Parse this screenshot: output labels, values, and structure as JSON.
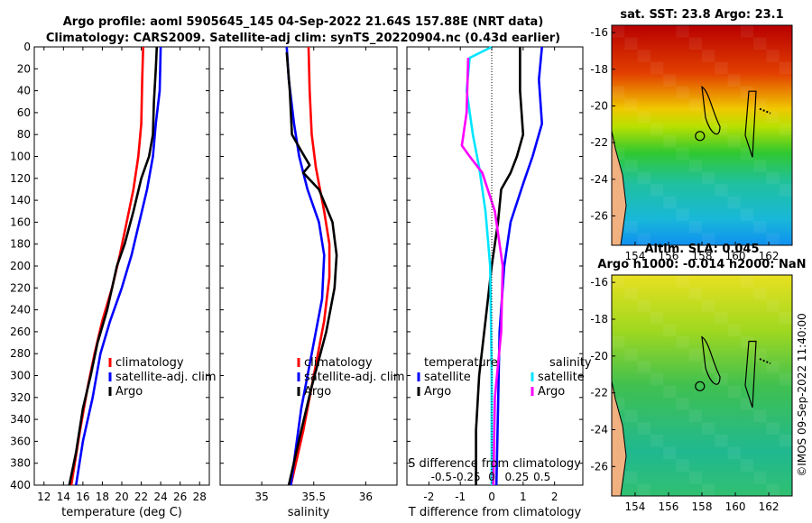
{
  "header": {
    "line1": "Argo profile: aoml 5905645_145 04-Sep-2022 21.64S 157.88E (NRT data)",
    "line2": "Climatology: CARS2009. Satellite-adj clim: synTS_20220904.nc (0.43d earlier)"
  },
  "side_label": "©IMOS 09-Sep-2022 11:40:00",
  "colors": {
    "climatology": "#ff0000",
    "satellite": "#0000ff",
    "argo": "#000000",
    "sat_salinity": "#00e5ff",
    "argo_salinity": "#ff00ff"
  },
  "chart_data": [
    {
      "id": "temperature",
      "type": "line",
      "xlabel": "temperature (deg C)",
      "xlim": [
        11,
        29
      ],
      "ylim": [
        0,
        400
      ],
      "xticks": [
        "12",
        "14",
        "16",
        "18",
        "20",
        "22",
        "24",
        "26",
        "28"
      ],
      "xtick_values": [
        12,
        14,
        16,
        18,
        20,
        22,
        24,
        26,
        28
      ],
      "yticks": [
        "0",
        "20",
        "40",
        "60",
        "80",
        "100",
        "120",
        "140",
        "160",
        "180",
        "200",
        "220",
        "240",
        "260",
        "280",
        "300",
        "320",
        "340",
        "360",
        "380",
        "400"
      ],
      "legend": [
        "climatology",
        "satellite-adj. clim",
        "Argo"
      ],
      "series": [
        {
          "name": "climatology",
          "color": "#ff0000",
          "points": [
            [
              22.2,
              0
            ],
            [
              22.1,
              30
            ],
            [
              22.0,
              70
            ],
            [
              21.7,
              100
            ],
            [
              21.2,
              130
            ],
            [
              20.5,
              160
            ],
            [
              19.8,
              190
            ],
            [
              19.0,
              220
            ],
            [
              18.0,
              250
            ],
            [
              17.2,
              280
            ],
            [
              16.5,
              310
            ],
            [
              15.7,
              350
            ],
            [
              14.8,
              400
            ]
          ]
        },
        {
          "name": "satellite-adj. clim",
          "color": "#0000ff",
          "points": [
            [
              24.0,
              0
            ],
            [
              23.9,
              40
            ],
            [
              23.5,
              70
            ],
            [
              23.2,
              100
            ],
            [
              22.6,
              130
            ],
            [
              21.8,
              160
            ],
            [
              21.0,
              190
            ],
            [
              20.0,
              220
            ],
            [
              18.8,
              250
            ],
            [
              17.8,
              280
            ],
            [
              17.0,
              320
            ],
            [
              16.0,
              360
            ],
            [
              15.3,
              400
            ]
          ]
        },
        {
          "name": "Argo",
          "color": "#000000",
          "points": [
            [
              23.6,
              0
            ],
            [
              23.5,
              20
            ],
            [
              23.3,
              50
            ],
            [
              23.2,
              80
            ],
            [
              22.8,
              100
            ],
            [
              22.0,
              120
            ],
            [
              21.2,
              150
            ],
            [
              20.3,
              180
            ],
            [
              19.5,
              200
            ],
            [
              18.5,
              240
            ],
            [
              17.5,
              270
            ],
            [
              16.8,
              300
            ],
            [
              16.0,
              330
            ],
            [
              15.3,
              370
            ],
            [
              14.6,
              400
            ]
          ]
        }
      ]
    },
    {
      "id": "salinity",
      "type": "line",
      "xlabel": "salinity",
      "xlim": [
        34.6,
        36.3
      ],
      "ylim": [
        0,
        400
      ],
      "xticks": [
        "35",
        "35.5",
        "36"
      ],
      "xtick_values": [
        35,
        35.5,
        36
      ],
      "legend": [
        "climatology",
        "satellite-adj. clim",
        "Argo"
      ],
      "series": [
        {
          "name": "climatology",
          "color": "#ff0000",
          "points": [
            [
              35.45,
              0
            ],
            [
              35.46,
              40
            ],
            [
              35.48,
              80
            ],
            [
              35.52,
              110
            ],
            [
              35.6,
              150
            ],
            [
              35.65,
              180
            ],
            [
              35.65,
              210
            ],
            [
              35.6,
              250
            ],
            [
              35.5,
              300
            ],
            [
              35.4,
              350
            ],
            [
              35.28,
              400
            ]
          ]
        },
        {
          "name": "satellite-adj. clim",
          "color": "#0000ff",
          "points": [
            [
              35.24,
              0
            ],
            [
              35.26,
              30
            ],
            [
              35.31,
              70
            ],
            [
              35.36,
              100
            ],
            [
              35.44,
              130
            ],
            [
              35.55,
              160
            ],
            [
              35.6,
              190
            ],
            [
              35.58,
              230
            ],
            [
              35.48,
              280
            ],
            [
              35.38,
              330
            ],
            [
              35.28,
              400
            ]
          ]
        },
        {
          "name": "Argo",
          "color": "#000000",
          "points": [
            [
              35.24,
              5
            ],
            [
              35.27,
              40
            ],
            [
              35.29,
              80
            ],
            [
              35.38,
              95
            ],
            [
              35.46,
              108
            ],
            [
              35.4,
              115
            ],
            [
              35.55,
              130
            ],
            [
              35.68,
              160
            ],
            [
              35.72,
              190
            ],
            [
              35.7,
              220
            ],
            [
              35.62,
              260
            ],
            [
              35.48,
              310
            ],
            [
              35.38,
              350
            ],
            [
              35.26,
              400
            ]
          ]
        }
      ]
    },
    {
      "id": "difference",
      "type": "line",
      "xlabel": "T difference from climatology",
      "top_xlabel": "S difference from climatology",
      "xlim": [
        -2.7,
        2.9
      ],
      "ylim": [
        0,
        400
      ],
      "xticks": [
        "-2",
        "-1",
        "0",
        "1",
        "2"
      ],
      "xtick_values": [
        -2,
        -1,
        0,
        1,
        2
      ],
      "top_xticks": [
        "-0.5",
        "-0.25",
        "0",
        "0.25",
        "0.5"
      ],
      "top_xtick_values": [
        -1.6,
        -0.8,
        0,
        0.8,
        1.6
      ],
      "legend_left_title": "temperature",
      "legend_left": [
        "satellite",
        "Argo"
      ],
      "legend_right_title": "salinity",
      "legend_right": [
        "satellite",
        "Argo"
      ],
      "series": [
        {
          "name": "temperature satellite",
          "color": "#0000ff",
          "points": [
            [
              1.6,
              0
            ],
            [
              1.5,
              30
            ],
            [
              1.6,
              70
            ],
            [
              1.3,
              100
            ],
            [
              1.0,
              125
            ],
            [
              0.6,
              160
            ],
            [
              0.4,
              200
            ],
            [
              0.25,
              260
            ],
            [
              0.2,
              330
            ],
            [
              0.15,
              400
            ]
          ]
        },
        {
          "name": "temperature Argo",
          "color": "#000000",
          "points": [
            [
              0.9,
              0
            ],
            [
              0.9,
              40
            ],
            [
              1.0,
              80
            ],
            [
              0.8,
              100
            ],
            [
              0.6,
              115
            ],
            [
              0.3,
              130
            ],
            [
              0.2,
              160
            ],
            [
              0.0,
              200
            ],
            [
              -0.2,
              250
            ],
            [
              -0.4,
              300
            ],
            [
              -0.5,
              350
            ],
            [
              -0.5,
              400
            ]
          ]
        },
        {
          "name": "salinity satellite",
          "color": "#00e5ff",
          "points": [
            [
              0.0,
              0
            ],
            [
              -0.7,
              10
            ],
            [
              -0.8,
              40
            ],
            [
              -0.6,
              80
            ],
            [
              -0.4,
              110
            ],
            [
              -0.2,
              150
            ],
            [
              -0.05,
              200
            ],
            [
              0.0,
              300
            ],
            [
              0.0,
              400
            ]
          ]
        },
        {
          "name": "salinity Argo",
          "color": "#ff00ff",
          "points": [
            [
              -0.75,
              10
            ],
            [
              -0.8,
              60
            ],
            [
              -0.95,
              90
            ],
            [
              -0.7,
              100
            ],
            [
              -0.3,
              115
            ],
            [
              0.1,
              150
            ],
            [
              0.35,
              200
            ],
            [
              0.3,
              260
            ],
            [
              0.1,
              320
            ],
            [
              0.05,
              400
            ]
          ]
        }
      ]
    },
    {
      "id": "sst-map",
      "type": "heatmap",
      "title": "sat. SST: 23.8 Argo: 23.1",
      "xticks": [
        "154",
        "156",
        "158",
        "160",
        "162"
      ],
      "xtick_values": [
        154,
        156,
        158,
        160,
        162
      ],
      "yticks": [
        "-16",
        "-18",
        "-20",
        "-22",
        "-24",
        "-26"
      ],
      "ytick_values": [
        -16,
        -18,
        -20,
        -22,
        -24,
        -26
      ],
      "xlim": [
        152.6,
        163.4
      ],
      "ylim": [
        -27.6,
        -15.6
      ],
      "marker": [
        157.88,
        -21.64
      ]
    },
    {
      "id": "sla-map",
      "type": "heatmap",
      "title1": "Altim. SLA: 0.045",
      "title2": "Argo h1000: -0.014 h2000: NaN",
      "xticks": [
        "154",
        "156",
        "158",
        "160",
        "162"
      ],
      "xtick_values": [
        154,
        156,
        158,
        160,
        162
      ],
      "yticks": [
        "-16",
        "-18",
        "-20",
        "-22",
        "-24",
        "-26"
      ],
      "ytick_values": [
        -16,
        -18,
        -20,
        -22,
        -24,
        -26
      ],
      "xlim": [
        152.6,
        163.4
      ],
      "ylim": [
        -27.6,
        -15.6
      ],
      "marker": [
        157.88,
        -21.64
      ]
    }
  ]
}
